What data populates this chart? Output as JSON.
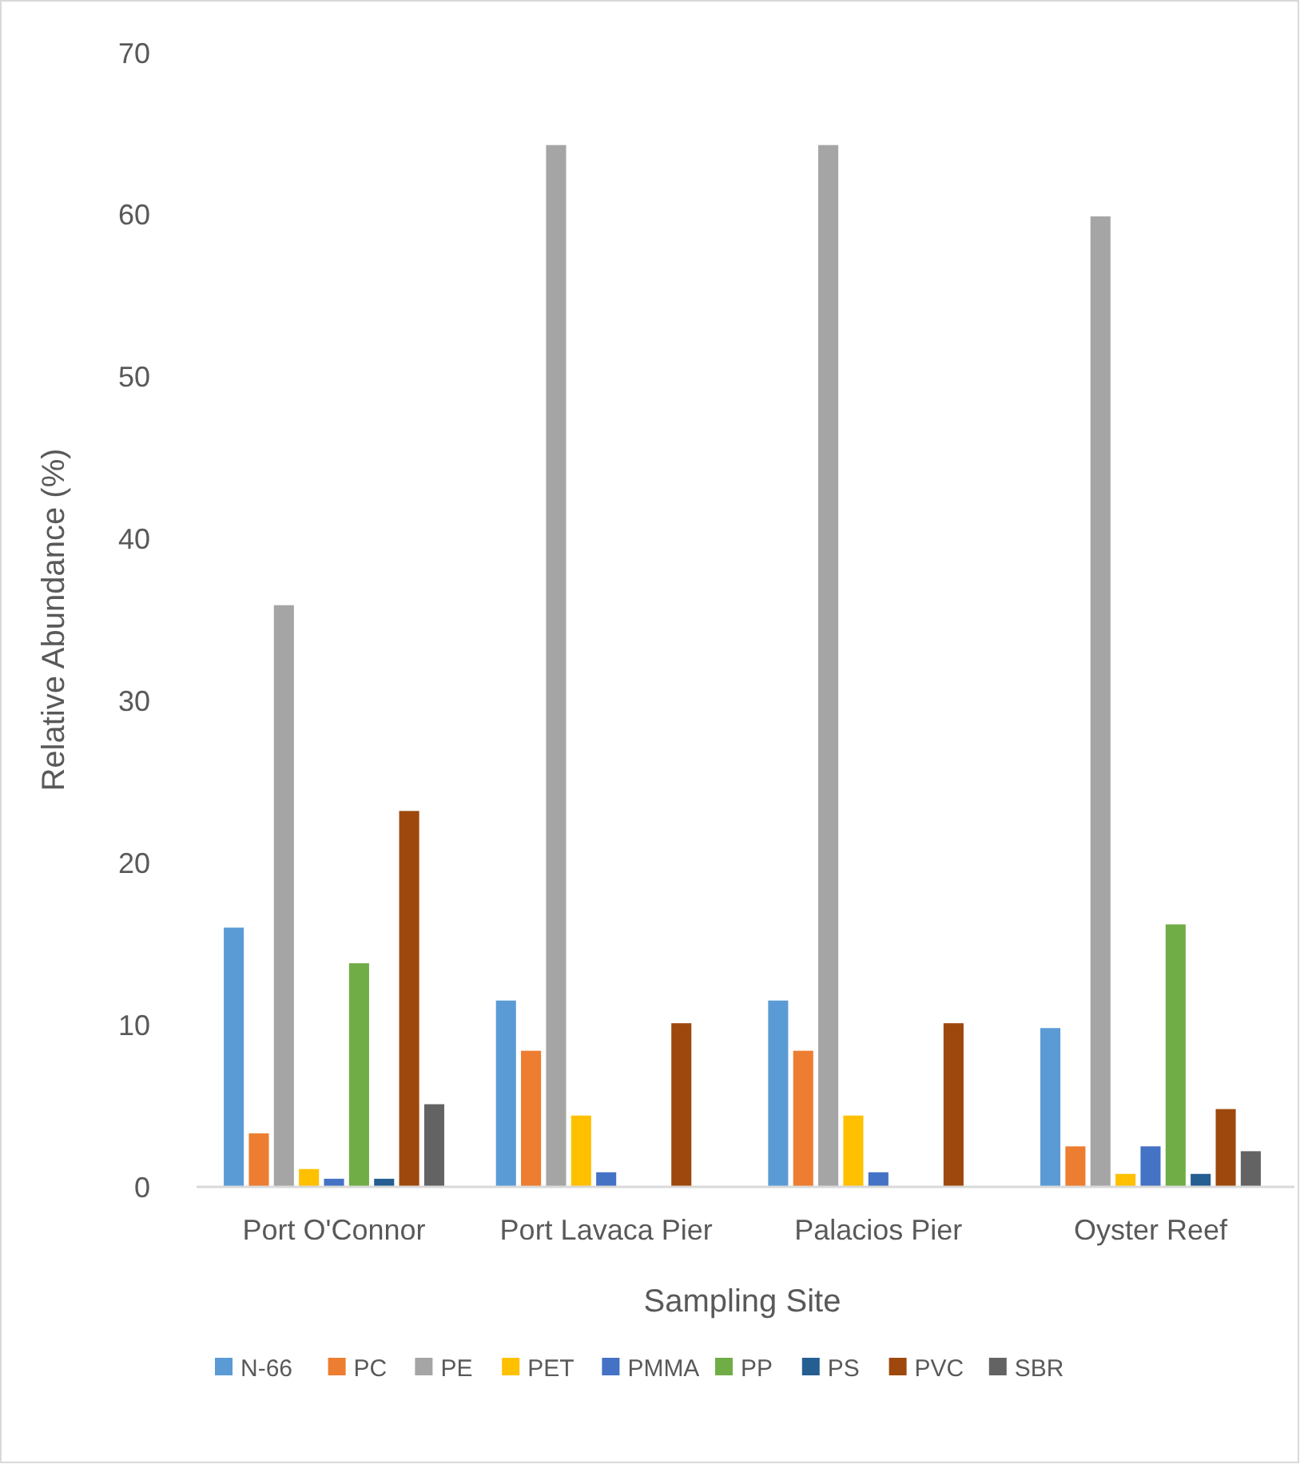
{
  "chart_data": {
    "type": "bar",
    "xlabel": "Sampling Site",
    "ylabel": "Relative Abundance (%)",
    "categories": [
      "Port O'Connor",
      "Port Lavaca Pier",
      "Palacios Pier",
      "Oyster Reef"
    ],
    "ylim": [
      0,
      70
    ],
    "yticks": [
      0,
      10,
      20,
      30,
      40,
      50,
      60,
      70
    ],
    "grid": false,
    "legend": "bottom",
    "series": [
      {
        "name": "N-66",
        "color": "#5b9bd5",
        "values": [
          16.0,
          11.5,
          11.5,
          9.8
        ]
      },
      {
        "name": "PC",
        "color": "#ed7d31",
        "values": [
          3.3,
          8.4,
          8.4,
          2.5
        ]
      },
      {
        "name": "PE",
        "color": "#a5a5a5",
        "values": [
          35.9,
          64.3,
          64.3,
          59.9
        ]
      },
      {
        "name": "PET",
        "color": "#ffc000",
        "values": [
          1.1,
          4.4,
          4.4,
          0.8
        ]
      },
      {
        "name": "PMMA",
        "color": "#4472c4",
        "values": [
          0.5,
          0.9,
          0.9,
          2.5
        ]
      },
      {
        "name": "PP",
        "color": "#70ad47",
        "values": [
          13.8,
          0,
          0,
          16.2
        ]
      },
      {
        "name": "PS",
        "color": "#255e91",
        "values": [
          0.5,
          0,
          0,
          0.8
        ]
      },
      {
        "name": "PVC",
        "color": "#9e480e",
        "values": [
          23.2,
          10.1,
          10.1,
          4.8
        ]
      },
      {
        "name": "SBR",
        "color": "#636363",
        "values": [
          5.1,
          0,
          0,
          2.2
        ]
      }
    ]
  }
}
